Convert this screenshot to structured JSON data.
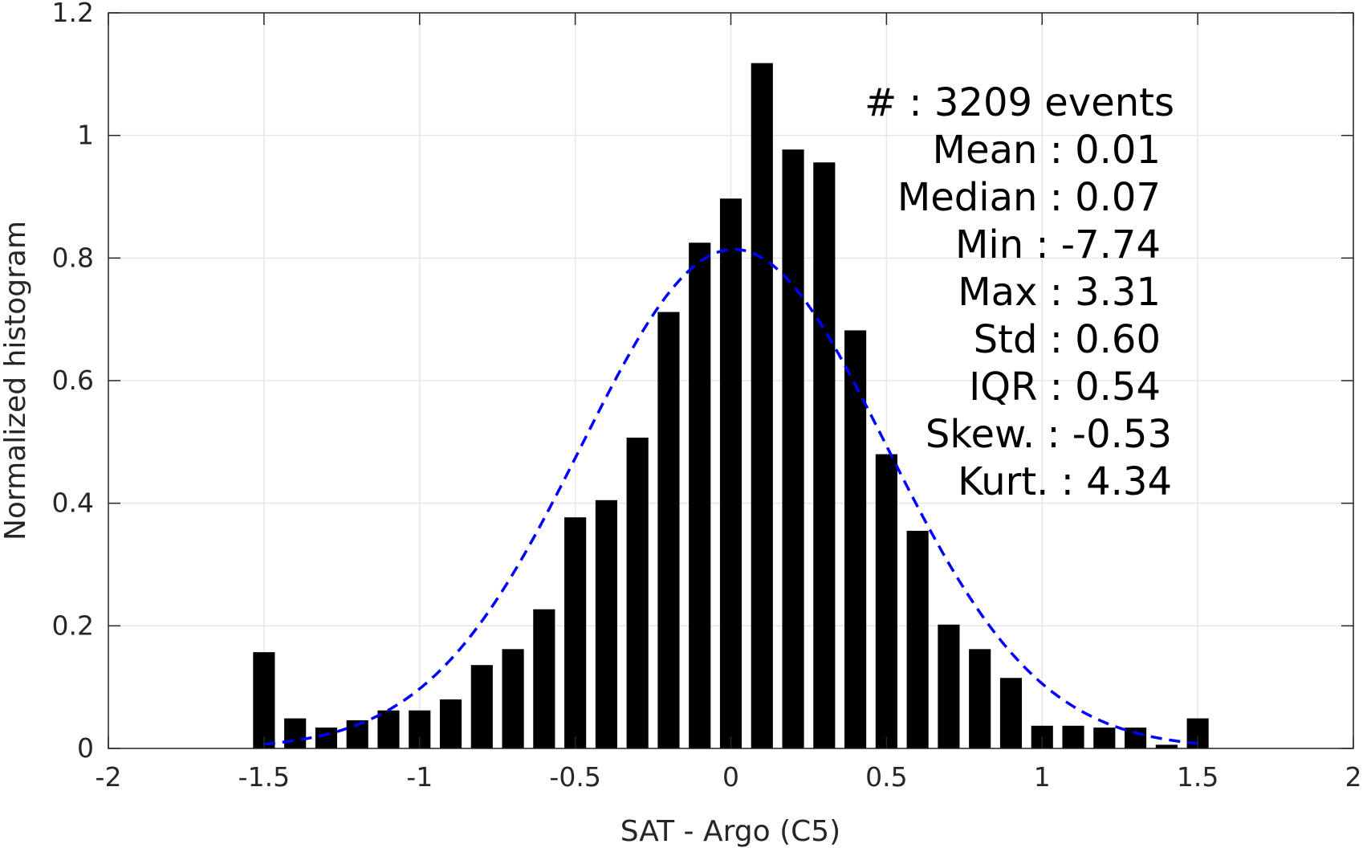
{
  "chart_data": {
    "type": "bar",
    "xlabel": "SAT - Argo (C5)",
    "ylabel": "Normalized histogram",
    "xlim": [
      -2,
      2
    ],
    "ylim": [
      0,
      1.2
    ],
    "grid": true,
    "x_ticks": [
      -2,
      -1.5,
      -1,
      -0.5,
      0,
      0.5,
      1,
      1.5,
      2
    ],
    "x_tick_labels": [
      "-2",
      "-1.5",
      "-1",
      "-0.5",
      "0",
      "0.5",
      "1",
      "1.5",
      "2"
    ],
    "y_ticks": [
      0,
      0.2,
      0.4,
      0.6,
      0.8,
      1,
      1.2
    ],
    "y_tick_labels": [
      "0",
      "0.2",
      "0.4",
      "0.6",
      "0.8",
      "1",
      "1.2"
    ],
    "bar_color": "#000000",
    "bar_width": 0.07,
    "x": [
      -1.5,
      -1.4,
      -1.3,
      -1.2,
      -1.1,
      -1.0,
      -0.9,
      -0.8,
      -0.7,
      -0.6,
      -0.5,
      -0.4,
      -0.3,
      -0.2,
      -0.1,
      0.0,
      0.1,
      0.2,
      0.3,
      0.4,
      0.5,
      0.6,
      0.7,
      0.8,
      0.9,
      1.0,
      1.1,
      1.2,
      1.3,
      1.4,
      1.5
    ],
    "values": [
      0.157,
      0.049,
      0.034,
      0.046,
      0.062,
      0.062,
      0.08,
      0.136,
      0.162,
      0.227,
      0.377,
      0.405,
      0.507,
      0.712,
      0.825,
      0.897,
      1.118,
      0.977,
      0.956,
      0.682,
      0.48,
      0.355,
      0.202,
      0.162,
      0.115,
      0.037,
      0.037,
      0.034,
      0.034,
      0.006,
      0.049
    ],
    "fit_curve": {
      "type": "normal",
      "mean": 0.01,
      "std": 0.49,
      "x_range": [
        -1.5,
        1.5
      ],
      "color": "#0000ff",
      "style": "dashed"
    },
    "annotations": [
      "#  : 3209 events",
      "Mean : 0.01",
      "Median : 0.07",
      "Min : -7.74",
      "Max : 3.31",
      "Std : 0.60",
      "IQR : 0.54",
      "Skew. : -0.53",
      "Kurt. : 4.34"
    ]
  }
}
